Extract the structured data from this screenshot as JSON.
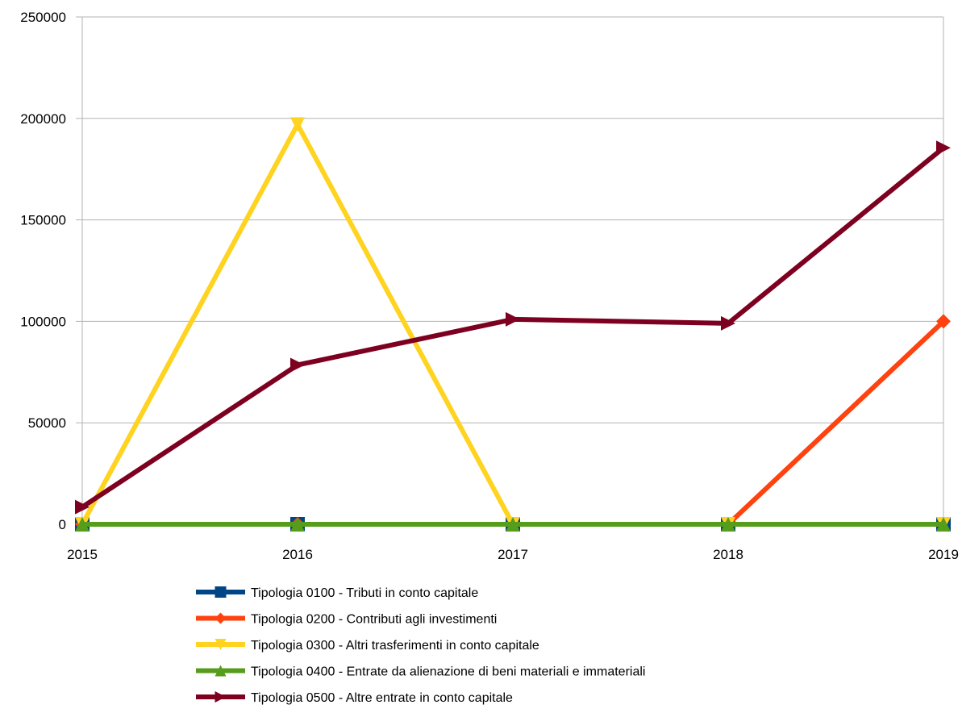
{
  "chart_data": {
    "type": "line",
    "title": "",
    "xlabel": "",
    "ylabel": "",
    "x": [
      "2015",
      "2016",
      "2017",
      "2018",
      "2019"
    ],
    "ylim": [
      0,
      250000
    ],
    "yticks": [
      "0",
      "50000",
      "100000",
      "150000",
      "200000",
      "250000"
    ],
    "grid": true,
    "legend_position": "bottom",
    "series": [
      {
        "name": "Tipologia 0100 - Tributi in conto capitale",
        "color": "#004586",
        "marker": "square",
        "values": [
          0,
          0,
          0,
          0,
          0
        ]
      },
      {
        "name": "Tipologia 0200 - Contributi agli investimenti",
        "color": "#ff420e",
        "marker": "diamond",
        "values": [
          0,
          0,
          0,
          0,
          100000
        ]
      },
      {
        "name": "Tipologia 0300 - Altri trasferimenti in conto capitale",
        "color": "#ffd320",
        "marker": "triangle-down",
        "values": [
          0,
          197000,
          0,
          0,
          0
        ]
      },
      {
        "name": "Tipologia 0400 - Entrate da alienazione di beni materiali e immateriali",
        "color": "#579d1c",
        "marker": "triangle-up",
        "values": [
          0,
          0,
          0,
          0,
          0
        ]
      },
      {
        "name": "Tipologia 0500 - Altre entrate in conto capitale",
        "color": "#7e0021",
        "marker": "triangle-right",
        "values": [
          8500,
          78500,
          101000,
          99000,
          185500
        ]
      }
    ]
  }
}
